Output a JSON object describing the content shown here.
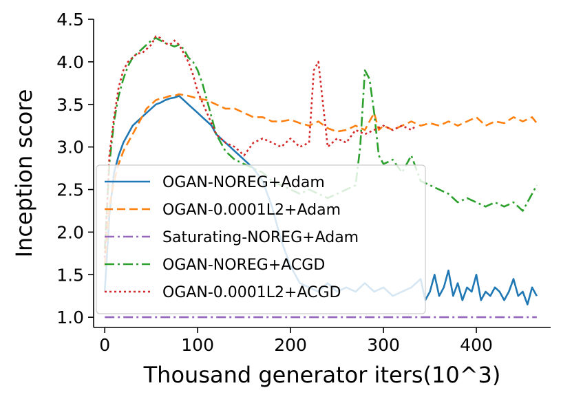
{
  "chart_data": {
    "type": "line",
    "xlabel": "Thousand generator iters(10^3)",
    "ylabel": "Inception score",
    "xlim": [
      -12,
      480
    ],
    "ylim": [
      0.88,
      4.5
    ],
    "xticks": [
      0,
      100,
      200,
      300,
      400
    ],
    "yticks": [
      1.0,
      1.5,
      2.0,
      2.5,
      3.0,
      3.5,
      4.0,
      4.5
    ],
    "grid": false,
    "legend_position": "lower-left",
    "series": [
      {
        "name": "OGAN-NOREG+Adam",
        "color": "#1f77b4",
        "dash": "solid",
        "x": [
          0,
          5,
          10,
          15,
          20,
          25,
          30,
          35,
          40,
          45,
          50,
          55,
          60,
          65,
          70,
          75,
          80,
          85,
          90,
          95,
          100,
          105,
          110,
          115,
          120,
          125,
          130,
          135,
          140,
          145,
          150,
          155,
          160,
          170,
          180,
          190,
          200,
          210,
          220,
          230,
          240,
          250,
          260,
          270,
          280,
          290,
          300,
          310,
          320,
          330,
          340,
          345,
          350,
          355,
          360,
          365,
          370,
          375,
          380,
          385,
          390,
          395,
          400,
          405,
          410,
          415,
          420,
          425,
          430,
          435,
          440,
          445,
          450,
          455,
          460,
          465
        ],
        "y": [
          1.3,
          2.2,
          2.7,
          2.9,
          3.05,
          3.15,
          3.25,
          3.3,
          3.35,
          3.4,
          3.45,
          3.5,
          3.52,
          3.55,
          3.57,
          3.58,
          3.6,
          3.55,
          3.5,
          3.45,
          3.4,
          3.35,
          3.3,
          3.25,
          3.15,
          3.1,
          3.05,
          3.0,
          2.95,
          2.9,
          2.85,
          2.8,
          2.75,
          2.6,
          2.3,
          1.9,
          1.6,
          1.4,
          1.35,
          1.3,
          1.4,
          1.3,
          1.35,
          1.3,
          1.4,
          1.3,
          1.35,
          1.25,
          1.3,
          1.35,
          1.45,
          1.2,
          1.3,
          1.5,
          1.25,
          1.35,
          1.55,
          1.25,
          1.4,
          1.2,
          1.35,
          1.3,
          1.5,
          1.2,
          1.3,
          1.25,
          1.35,
          1.3,
          1.2,
          1.3,
          1.45,
          1.25,
          1.3,
          1.15,
          1.35,
          1.25
        ]
      },
      {
        "name": "OGAN-0.0001L2+Adam",
        "color": "#ff7f0e",
        "dash": "dashed",
        "x": [
          0,
          5,
          10,
          15,
          20,
          25,
          30,
          35,
          40,
          45,
          50,
          55,
          60,
          65,
          70,
          75,
          80,
          90,
          100,
          110,
          120,
          130,
          140,
          150,
          160,
          170,
          180,
          190,
          200,
          210,
          220,
          230,
          240,
          250,
          260,
          270,
          280,
          285,
          290,
          295,
          300,
          310,
          320,
          330,
          340,
          350,
          360,
          370,
          380,
          390,
          400,
          410,
          420,
          430,
          440,
          450,
          460,
          465
        ],
        "y": [
          1.6,
          2.3,
          2.6,
          2.8,
          2.95,
          3.05,
          3.15,
          3.25,
          3.35,
          3.45,
          3.5,
          3.55,
          3.57,
          3.58,
          3.6,
          3.6,
          3.62,
          3.6,
          3.57,
          3.55,
          3.5,
          3.45,
          3.45,
          3.4,
          3.35,
          3.35,
          3.3,
          3.3,
          3.32,
          3.28,
          3.25,
          3.3,
          3.22,
          3.18,
          3.2,
          3.25,
          3.2,
          3.3,
          3.4,
          3.2,
          3.25,
          3.2,
          3.25,
          3.3,
          3.25,
          3.28,
          3.25,
          3.3,
          3.25,
          3.3,
          3.35,
          3.25,
          3.3,
          3.28,
          3.35,
          3.3,
          3.35,
          3.28
        ]
      },
      {
        "name": "Saturating-NOREG+Adam",
        "color": "#9467bd",
        "dash": "dashdot",
        "x": [
          0,
          100,
          200,
          300,
          400,
          465
        ],
        "y": [
          1.0,
          1.0,
          1.0,
          1.0,
          1.0,
          1.0
        ]
      },
      {
        "name": "OGAN-NOREG+ACGD",
        "color": "#2ca02c",
        "dash": "dashdot",
        "x": [
          0,
          5,
          10,
          15,
          20,
          25,
          30,
          35,
          40,
          45,
          50,
          55,
          60,
          65,
          70,
          75,
          80,
          85,
          90,
          95,
          100,
          105,
          110,
          115,
          120,
          130,
          140,
          150,
          160,
          170,
          180,
          190,
          200,
          210,
          220,
          230,
          240,
          250,
          260,
          270,
          275,
          280,
          285,
          290,
          295,
          300,
          310,
          320,
          330,
          340,
          350,
          360,
          370,
          380,
          390,
          400,
          410,
          420,
          430,
          440,
          450,
          460,
          465
        ],
        "y": [
          1.8,
          2.8,
          3.3,
          3.6,
          3.8,
          3.95,
          4.05,
          4.1,
          4.15,
          4.2,
          4.25,
          4.28,
          4.25,
          4.22,
          4.2,
          4.18,
          4.2,
          4.15,
          4.05,
          4.0,
          3.9,
          3.75,
          3.55,
          3.35,
          3.15,
          2.95,
          2.85,
          2.8,
          2.75,
          2.7,
          2.6,
          2.55,
          2.5,
          2.45,
          2.5,
          2.45,
          2.4,
          2.45,
          2.5,
          2.55,
          3.0,
          3.9,
          3.8,
          3.4,
          2.9,
          2.8,
          2.85,
          2.7,
          2.9,
          2.6,
          2.55,
          2.5,
          2.45,
          2.35,
          2.4,
          2.35,
          2.3,
          2.35,
          2.3,
          2.35,
          2.25,
          2.45,
          2.55
        ]
      },
      {
        "name": "OGAN-0.0001L2+ACGD",
        "color": "#d62728",
        "dash": "dotted",
        "x": [
          0,
          5,
          10,
          15,
          20,
          25,
          30,
          35,
          40,
          45,
          50,
          55,
          60,
          65,
          70,
          75,
          80,
          85,
          90,
          95,
          100,
          110,
          120,
          130,
          140,
          150,
          160,
          170,
          180,
          190,
          200,
          210,
          220,
          225,
          230,
          235,
          240,
          250,
          260,
          270,
          280,
          290,
          300,
          310,
          320,
          330,
          335
        ],
        "y": [
          1.7,
          2.9,
          3.35,
          3.7,
          3.9,
          4.0,
          4.05,
          4.1,
          4.1,
          4.15,
          4.2,
          4.3,
          4.28,
          4.22,
          4.2,
          4.25,
          4.2,
          4.1,
          4.0,
          3.85,
          3.65,
          3.4,
          3.15,
          3.05,
          3.0,
          2.9,
          3.05,
          3.1,
          3.05,
          3.0,
          3.1,
          3.0,
          3.05,
          3.9,
          4.0,
          3.5,
          3.0,
          3.1,
          3.05,
          3.2,
          3.15,
          3.2,
          3.25,
          3.2,
          3.25,
          3.2,
          3.25
        ]
      }
    ]
  }
}
